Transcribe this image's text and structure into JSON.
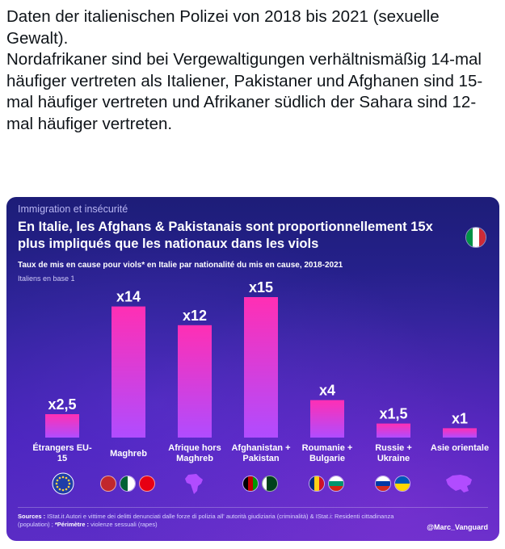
{
  "tweet": {
    "paragraph_1": "Daten der italienischen Polizei von 2018 bis 2021 (sexuelle Gewalt).",
    "paragraph_2": "Nordafrikaner sind bei Vergewaltigungen verhältnismäßig 14-mal häufiger vertreten als Italiener, Pakistaner und Afghanen sind 15-mal häufiger vertreten und Afrikaner südlich der Sahara sind 12-mal häufiger vertreten."
  },
  "card": {
    "section": "Immigration et insécurité",
    "title": "En Italie, les Afghans & Pakistanais sont proportionnellement 15x plus impliqués que les nationaux dans les viols",
    "subtitle": "Taux de mis en cause pour viols* en Italie par nationalité du mis en cause, 2018-2021",
    "base": "Italiens en base 1",
    "sources_label": "Sources :",
    "sources_text": " IStat.it Autori e vittime dei delitti denunciati dalle forze di polizia all' autorità giudiziaria (criminalità) & IStat.i: Residenti cittadinanza (population) ; ",
    "perimeter_label": "*Périmètre :",
    "perimeter_text": " violenze sessuali (rapes)",
    "handle": "@Marc_Vanguard"
  },
  "colors": {
    "bar_top": "#ff2fb4",
    "bar_bottom": "#b04cff",
    "italy_green": "#009246",
    "italy_white": "#ffffff",
    "italy_red": "#ce2b37"
  },
  "chart_data": {
    "type": "bar",
    "categories": [
      "Étrangers EU-15",
      "Maghreb",
      "Afrique hors Maghreb",
      "Afghanistan + Pakistan",
      "Roumanie + Bulgarie",
      "Russie + Ukraine",
      "Asie orientale"
    ],
    "values": [
      2.5,
      14,
      12,
      15,
      4,
      1.5,
      1
    ],
    "data_labels": [
      "x2,5",
      "x14",
      "x12",
      "x15",
      "x4",
      "x1,5",
      "x1"
    ],
    "ylim": [
      0,
      15
    ],
    "grid": false
  },
  "icons": [
    "eu-flag-icon",
    "morocco-algeria-tunisia-flags-icon",
    "africa-map-icon",
    "afghanistan-pakistan-flags-icon",
    "romania-bulgaria-flags-icon",
    "russia-ukraine-flags-icon",
    "east-asia-map-icon"
  ]
}
